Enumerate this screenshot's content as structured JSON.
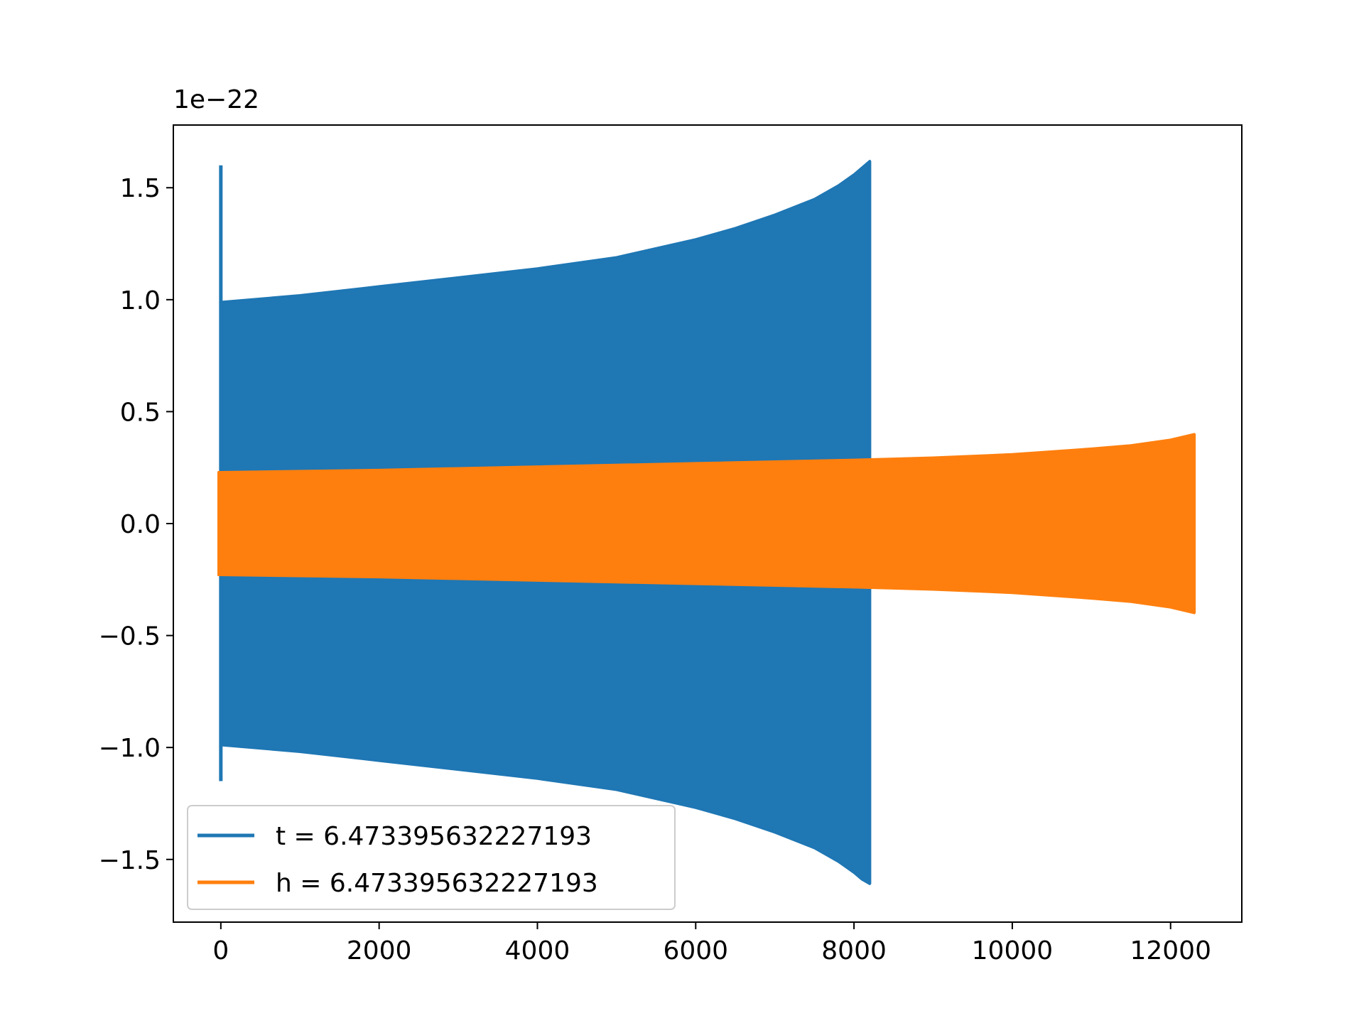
{
  "chart_data": {
    "type": "line",
    "title": "",
    "xlabel": "",
    "ylabel": "",
    "y_offset_label": "1e−22",
    "xlim": [
      -600,
      12900
    ],
    "ylim": [
      -1.78,
      1.78
    ],
    "grid": false,
    "legend_placement": "lower-left",
    "x_ticks": [
      0,
      2000,
      4000,
      6000,
      8000,
      10000,
      12000
    ],
    "x_tick_labels": [
      "0",
      "2000",
      "4000",
      "6000",
      "8000",
      "10000",
      "12000"
    ],
    "y_ticks": [
      -1.5,
      -1.0,
      -0.5,
      0.0,
      0.5,
      1.0,
      1.5
    ],
    "y_tick_labels": [
      "−1.5",
      "−1.0",
      "−0.5",
      "0.0",
      "0.5",
      "1.0",
      "1.5"
    ],
    "series": [
      {
        "name": "t = 6.473395632227193",
        "color": "#1f77b4",
        "envelope_x": [
          0,
          1000,
          2000,
          3000,
          4000,
          5000,
          6000,
          6500,
          7000,
          7500,
          7800,
          8000,
          8100,
          8200
        ],
        "envelope_upper": [
          0.99,
          1.02,
          1.06,
          1.1,
          1.14,
          1.19,
          1.27,
          1.32,
          1.38,
          1.45,
          1.51,
          1.56,
          1.59,
          1.62
        ],
        "envelope_lower": [
          -0.99,
          -1.02,
          -1.06,
          -1.1,
          -1.14,
          -1.19,
          -1.27,
          -1.32,
          -1.38,
          -1.45,
          -1.51,
          -1.56,
          -1.59,
          -1.61
        ],
        "spike_x": 0,
        "spike_max": 1.6,
        "spike_min": -1.15
      },
      {
        "name": "h = 6.473395632227193",
        "color": "#ff7f0e",
        "envelope_x": [
          -30,
          0,
          2000,
          4000,
          6000,
          8000,
          9000,
          10000,
          11000,
          11500,
          12000,
          12300
        ],
        "envelope_upper": [
          0.23,
          0.23,
          0.24,
          0.255,
          0.27,
          0.285,
          0.295,
          0.31,
          0.335,
          0.35,
          0.375,
          0.4
        ],
        "envelope_lower": [
          -0.23,
          -0.23,
          -0.24,
          -0.255,
          -0.27,
          -0.285,
          -0.295,
          -0.31,
          -0.335,
          -0.35,
          -0.375,
          -0.4
        ]
      }
    ]
  }
}
